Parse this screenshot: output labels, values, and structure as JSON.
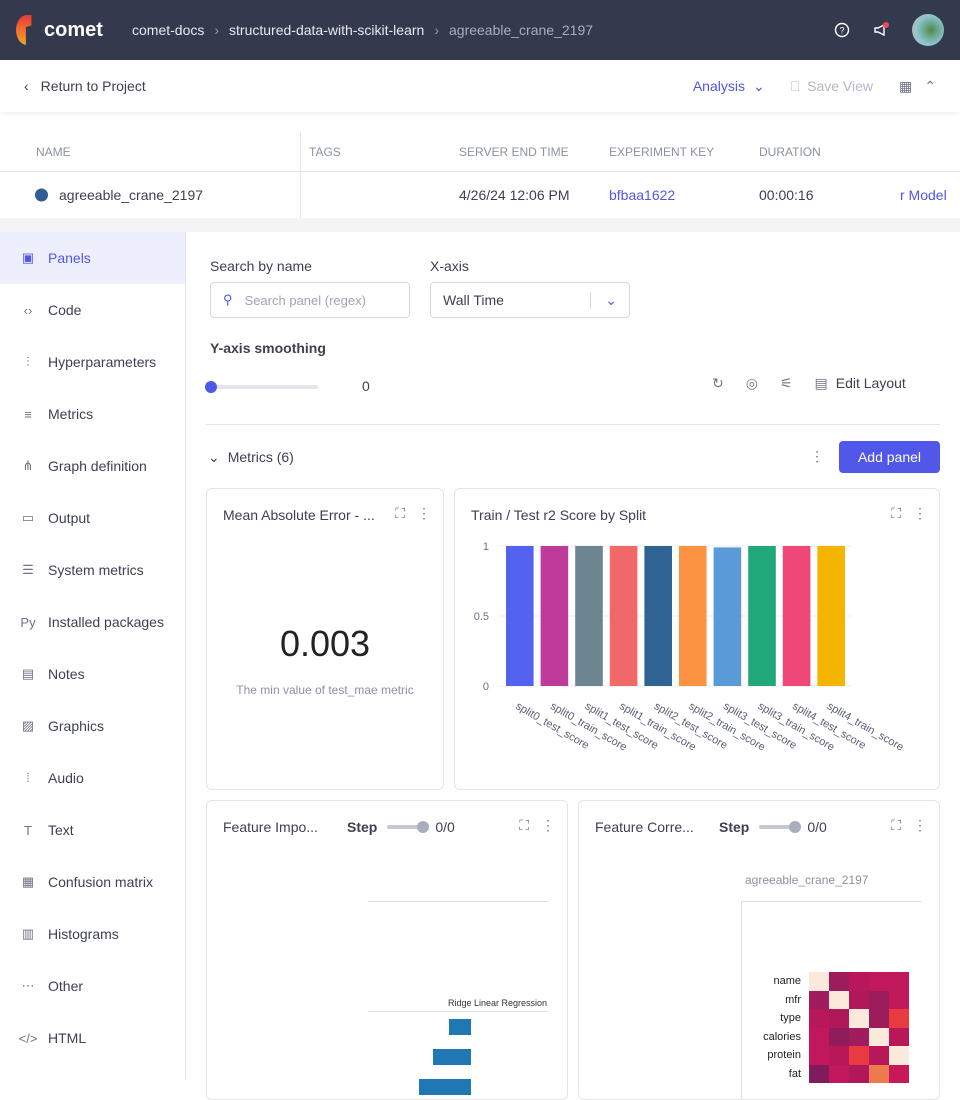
{
  "header": {
    "logo": "comet",
    "breadcrumbs": [
      "comet-docs",
      "structured-data-with-scikit-learn",
      "agreeable_crane_2197"
    ]
  },
  "toolbar": {
    "return_label": "Return to Project",
    "analysis_label": "Analysis",
    "save_view_label": "Save View"
  },
  "table": {
    "columns": [
      "NAME",
      "TAGS",
      "SERVER END TIME",
      "EXPERIMENT KEY",
      "DURATION"
    ],
    "row": {
      "name": "agreeable_crane_2197",
      "tags": "",
      "server_end_time": "4/26/24 12:06 PM",
      "experiment_key": "bfbaa1622",
      "duration": "00:00:16",
      "extra": "r Model",
      "dot_color": "#2f5d94"
    }
  },
  "sidebar": {
    "items": [
      {
        "label": "Panels",
        "icon": "panels-icon",
        "active": true
      },
      {
        "label": "Code",
        "icon": "code-icon"
      },
      {
        "label": "Hyperparameters",
        "icon": "sliders-icon"
      },
      {
        "label": "Metrics",
        "icon": "metrics-icon"
      },
      {
        "label": "Graph definition",
        "icon": "graph-icon"
      },
      {
        "label": "Output",
        "icon": "output-icon"
      },
      {
        "label": "System metrics",
        "icon": "system-icon"
      },
      {
        "label": "Installed packages",
        "icon": "python-icon"
      },
      {
        "label": "Notes",
        "icon": "notes-icon"
      },
      {
        "label": "Graphics",
        "icon": "image-icon"
      },
      {
        "label": "Audio",
        "icon": "audio-icon"
      },
      {
        "label": "Text",
        "icon": "text-icon"
      },
      {
        "label": "Confusion matrix",
        "icon": "matrix-icon"
      },
      {
        "label": "Histograms",
        "icon": "histogram-icon"
      },
      {
        "label": "Other",
        "icon": "other-icon"
      },
      {
        "label": "HTML",
        "icon": "html-icon"
      }
    ]
  },
  "filters": {
    "search_label": "Search by name",
    "search_placeholder": "Search panel (regex)",
    "xaxis_label": "X-axis",
    "xaxis_value": "Wall Time",
    "smoothing_label": "Y-axis smoothing",
    "smoothing_value": "0",
    "edit_layout": "Edit Layout"
  },
  "section": {
    "title": "Metrics (6)",
    "add_panel": "Add panel"
  },
  "panels": {
    "mae": {
      "title": "Mean Absolute Error - ...",
      "value": "0.003",
      "caption": "The min value of test_mae metric"
    },
    "r2": {
      "title": "Train / Test r2 Score by Split"
    },
    "fi": {
      "title": "Feature Impo...",
      "step_label": "Step",
      "step_value": "0/0",
      "chart_title": "Ridge Linear Regression"
    },
    "fc": {
      "title": "Feature Corre...",
      "step_label": "Step",
      "step_value": "0/0",
      "chart_title": "agreeable_crane_2197",
      "rows": [
        "name",
        "mfr",
        "type",
        "calories",
        "protein",
        "fat"
      ]
    }
  },
  "chart_data": [
    {
      "type": "bar",
      "title": "Train / Test r2 Score by Split",
      "categories": [
        "split0_test_score",
        "split0_train_score",
        "split1_test_score",
        "split1_train_score",
        "split2_test_score",
        "split2_train_score",
        "split3_test_score",
        "split3_train_score",
        "split4_test_score",
        "split4_train_score"
      ],
      "values": [
        1,
        1,
        1,
        1,
        1,
        1,
        0.99,
        1,
        1,
        1
      ],
      "colors": [
        "#5462f0",
        "#c03a9c",
        "#6c8590",
        "#f06868",
        "#2e6394",
        "#fc9342",
        "#5a9ad8",
        "#20a87a",
        "#ee4778",
        "#f4b400"
      ],
      "yticks": [
        0,
        0.5,
        1
      ],
      "ylim": [
        0,
        1
      ]
    },
    {
      "type": "heatmap",
      "title": "agreeable_crane_2197",
      "rows": [
        "name",
        "mfr",
        "type",
        "calories",
        "protein",
        "fat"
      ],
      "colors": [
        [
          "#fbeadc",
          "#9c1c5c",
          "#b8185a",
          "#c0185a",
          "#c0185a"
        ],
        [
          "#a01c5c",
          "#fbeadc",
          "#b0185a",
          "#9c1c5c",
          "#c0185a"
        ],
        [
          "#b8185a",
          "#b0185a",
          "#fbeadc",
          "#9c1c5c",
          "#e83a40"
        ],
        [
          "#c0185a",
          "#901c5c",
          "#a01c5c",
          "#fbeadc",
          "#b8185a"
        ],
        [
          "#c0185a",
          "#b8185a",
          "#e83a40",
          "#b8185a",
          "#fbeadc"
        ],
        [
          "#801c5c",
          "#c0185a",
          "#b0185a",
          "#f07a50",
          "#c8185a"
        ]
      ]
    }
  ]
}
